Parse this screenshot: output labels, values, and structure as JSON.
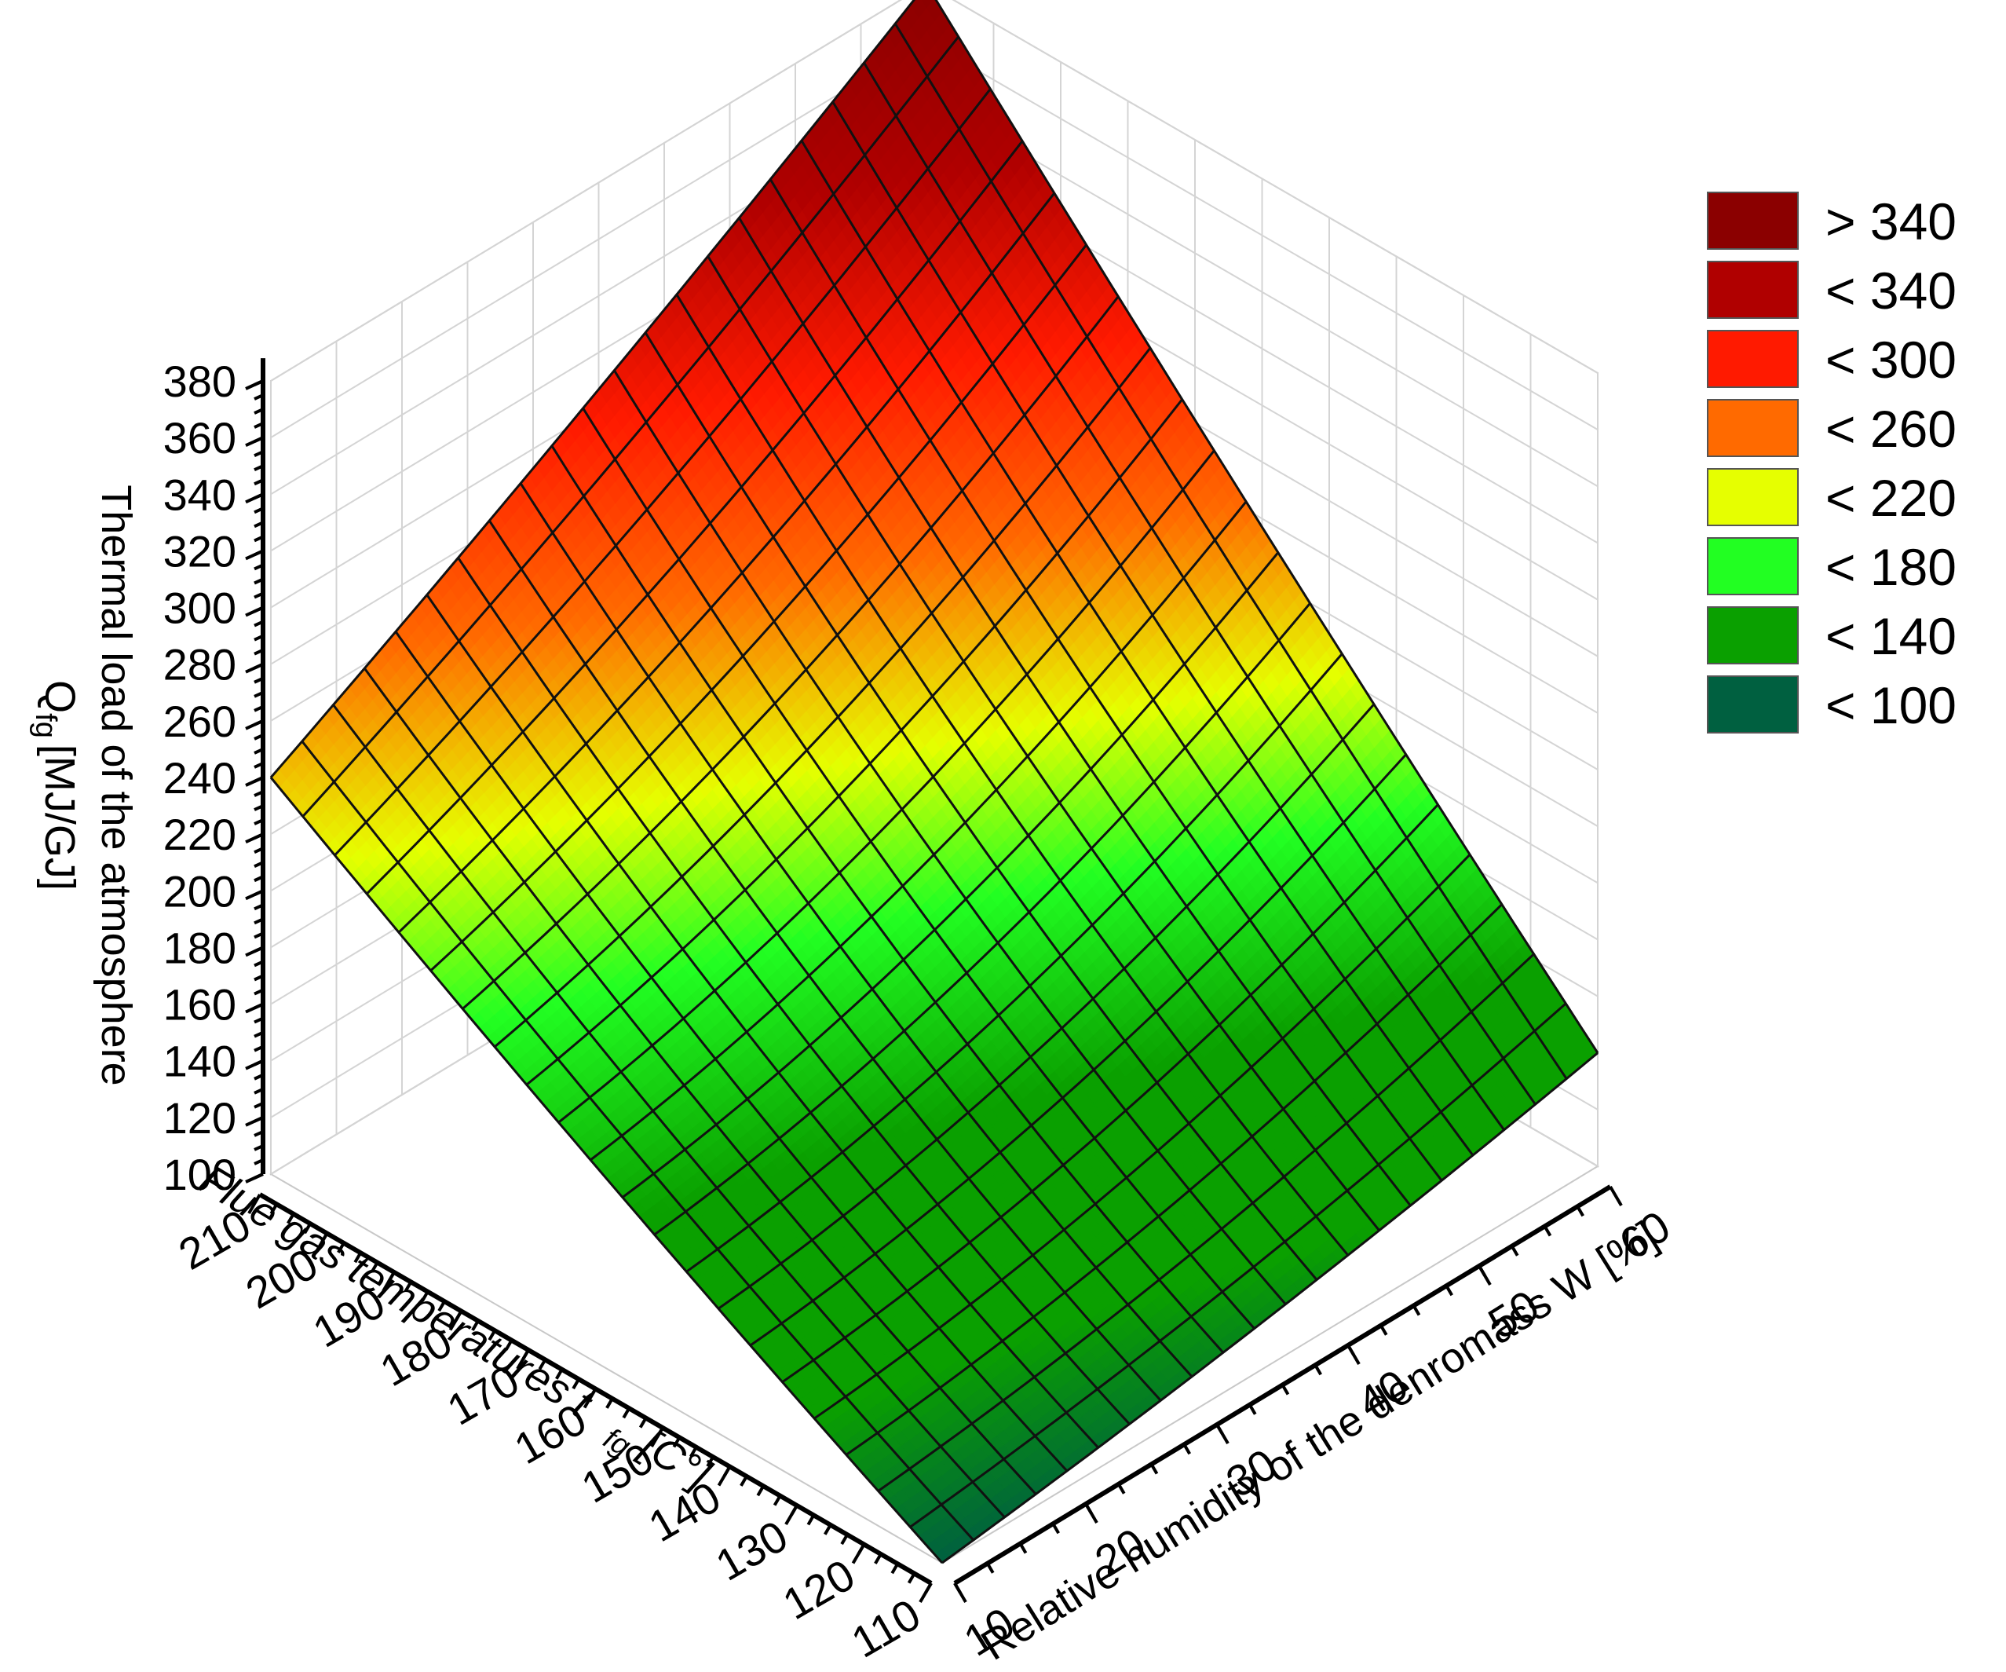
{
  "chart_data": {
    "type": "surface",
    "z_axis": {
      "label": "Thermal load of the atmosphere",
      "label_line2_main": "Q",
      "label_line2_sub": "fg",
      "label_line2_unit": "[MJ/GJ]",
      "ticks": [
        "100",
        "120",
        "140",
        "160",
        "180",
        "200",
        "220",
        "240",
        "260",
        "280",
        "300",
        "320",
        "340",
        "360",
        "380"
      ],
      "range": [
        100,
        380
      ]
    },
    "x_axis": {
      "label_main": "Flue gas temperatures t",
      "label_sub": "fg",
      "label_unit": "[C°]",
      "ticks": [
        "210",
        "200",
        "190",
        "180",
        "170",
        "160",
        "150",
        "140",
        "130",
        "120",
        "110"
      ],
      "range": [
        110,
        210
      ]
    },
    "y_axis": {
      "label": "Relative humidity of the denromass W [%]",
      "ticks": [
        "10",
        "20",
        "30",
        "40",
        "50",
        "60"
      ],
      "range": [
        10,
        60
      ]
    },
    "surface_corners": {
      "t110_w10": 100,
      "t210_w10": 240,
      "t110_w60": 140,
      "t210_w60": 380
    },
    "grid_divisions": 21,
    "legend": {
      "position": "top-right",
      "items": [
        {
          "label": "> 340",
          "color": "#8b0000"
        },
        {
          "label": "< 340",
          "color": "#b00000"
        },
        {
          "label": "< 300",
          "color": "#ff1a00"
        },
        {
          "label": "< 260",
          "color": "#ff6a00"
        },
        {
          "label": "< 220",
          "color": "#e6ff00"
        },
        {
          "label": "< 180",
          "color": "#22ff22"
        },
        {
          "label": "< 140",
          "color": "#0aa000"
        },
        {
          "label": "< 100",
          "color": "#006040"
        }
      ]
    }
  }
}
